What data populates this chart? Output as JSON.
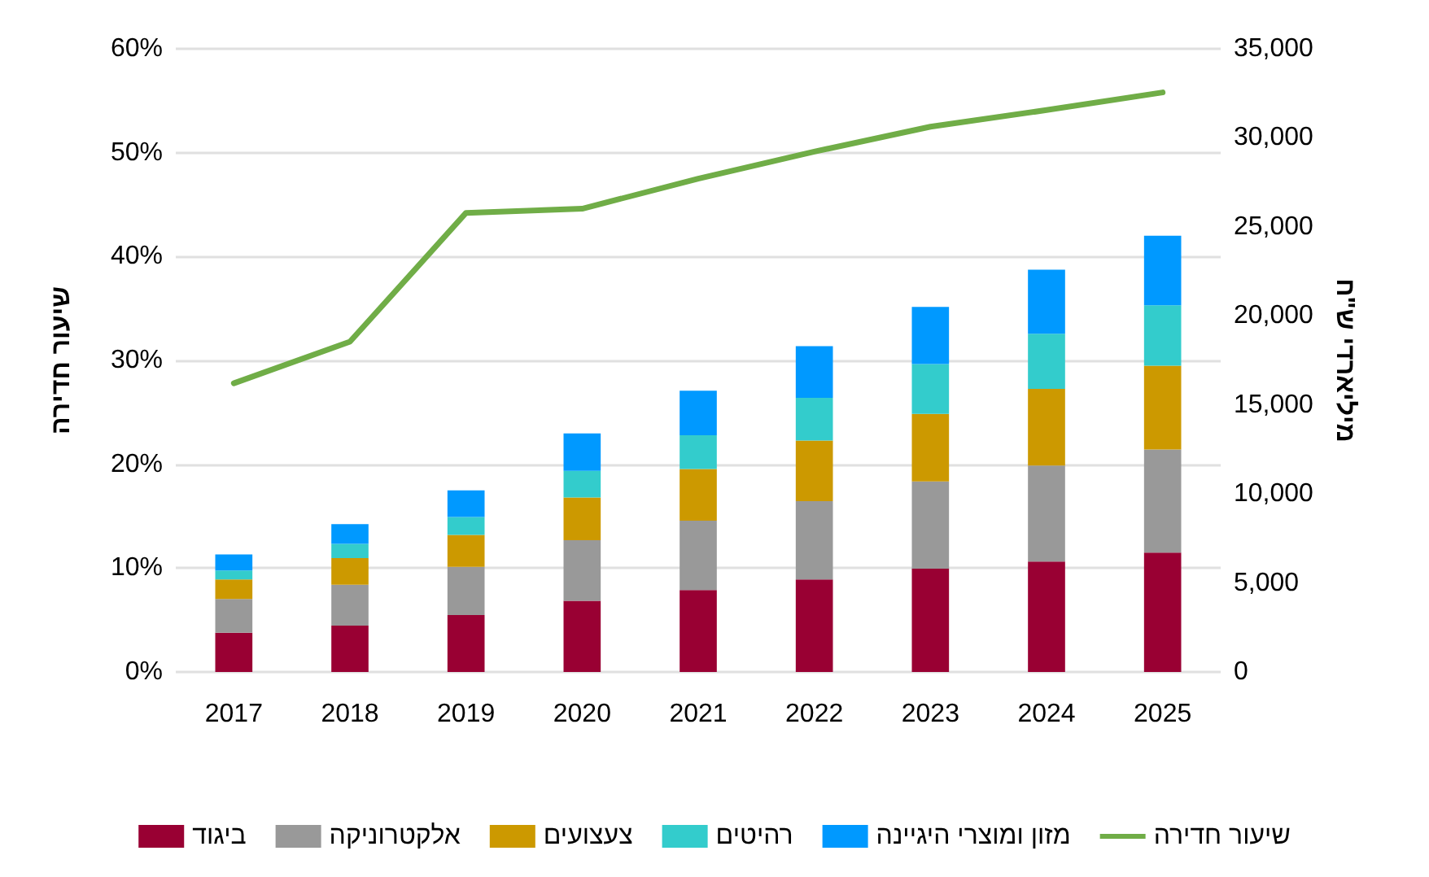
{
  "chart_data": {
    "type": "bar",
    "stacked": true,
    "categories": [
      "2017",
      "2018",
      "2019",
      "2020",
      "2021",
      "2022",
      "2023",
      "2024",
      "2025"
    ],
    "series": [
      {
        "name": "ביגוד",
        "color": "#990033",
        "axis": "y2",
        "values": [
          2200,
          2600,
          3200,
          4000,
          4600,
          5200,
          5800,
          6200,
          6700
        ]
      },
      {
        "name": "אלקטרוניקה",
        "color": "#999999",
        "axis": "y2",
        "values": [
          1900,
          2300,
          2700,
          3400,
          3900,
          4400,
          4900,
          5400,
          5800
        ]
      },
      {
        "name": "צעצועים",
        "color": "#cc9900",
        "axis": "y2",
        "values": [
          1100,
          1500,
          1800,
          2400,
          2900,
          3400,
          3800,
          4300,
          4700
        ]
      },
      {
        "name": "רהיטים",
        "color": "#33cccc",
        "axis": "y2",
        "values": [
          500,
          800,
          1000,
          1500,
          1900,
          2400,
          2800,
          3100,
          3400
        ]
      },
      {
        "name": "מזון ומוצרי היגיינה",
        "color": "#0099ff",
        "axis": "y2",
        "values": [
          900,
          1100,
          1500,
          2100,
          2500,
          2900,
          3200,
          3600,
          3900
        ]
      },
      {
        "name": "שיעור חדירה",
        "type": "line",
        "color": "#70ad47",
        "axis": "y",
        "marker": "none",
        "values": [
          27.8,
          31.8,
          44.2,
          44.6,
          47.5,
          50.1,
          52.5,
          54.1,
          55.8
        ]
      }
    ],
    "ylabel": "שיעור חדירה",
    "y2label": "מיליארדי ש\"ח",
    "ylim": [
      0,
      60
    ],
    "yticks": [
      {
        "value": 0,
        "label": "0%"
      },
      {
        "value": 10,
        "label": "10%"
      },
      {
        "value": 20,
        "label": "20%"
      },
      {
        "value": 30,
        "label": "30%"
      },
      {
        "value": 40,
        "label": "40%"
      },
      {
        "value": 50,
        "label": "50%"
      },
      {
        "value": 60,
        "label": "60%"
      }
    ],
    "y2lim": [
      0,
      35000
    ],
    "y2ticks": [
      0,
      {
        "value": 5000,
        "label": "5,000"
      },
      {
        "value": 10000,
        "label": "10,000"
      },
      {
        "value": 15000,
        "label": "15,000"
      },
      {
        "value": 20000,
        "label": "20,000"
      },
      {
        "value": 25000,
        "label": "25,000"
      },
      {
        "value": 30000,
        "label": "30,000"
      },
      {
        "value": 35000,
        "label": "35,000"
      }
    ],
    "grid": "y",
    "legend": "bottom"
  }
}
